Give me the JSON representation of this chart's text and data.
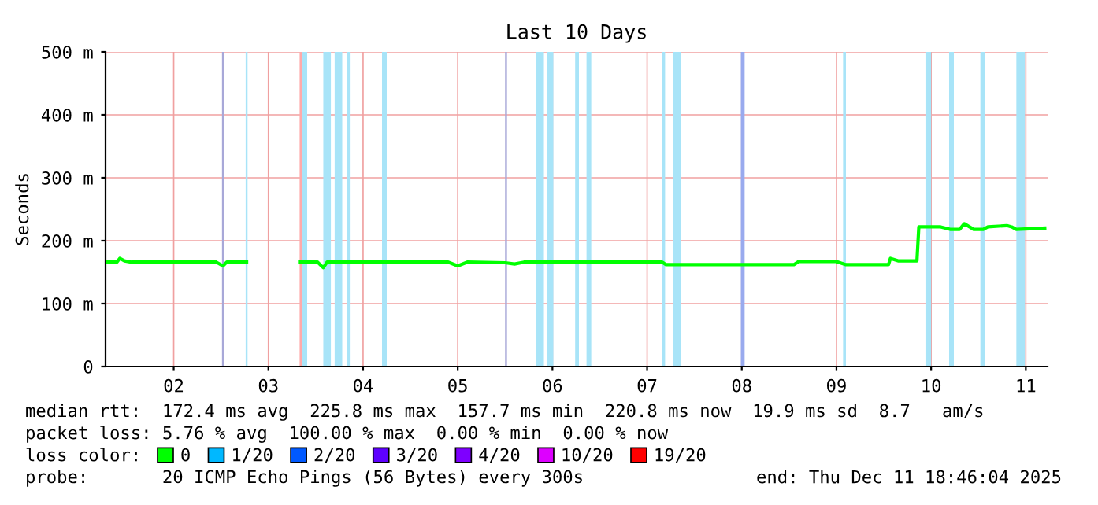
{
  "chart_data": {
    "type": "line",
    "title": "Last 10 Days",
    "ylabel": "Seconds",
    "legend_title": "loss color:",
    "xlim": [
      1.28,
      11.23
    ],
    "xticks": [
      {
        "value": 2,
        "label": "02"
      },
      {
        "value": 3,
        "label": "03"
      },
      {
        "value": 4,
        "label": "04"
      },
      {
        "value": 5,
        "label": "05"
      },
      {
        "value": 6,
        "label": "06"
      },
      {
        "value": 7,
        "label": "07"
      },
      {
        "value": 8,
        "label": "08"
      },
      {
        "value": 9,
        "label": "09"
      },
      {
        "value": 10,
        "label": "10"
      },
      {
        "value": 11,
        "label": "11"
      }
    ],
    "ylim": [
      0,
      500
    ],
    "yticks": [
      0,
      {
        "value": 100,
        "label": "100 m"
      },
      {
        "value": 200,
        "label": "200 m"
      },
      {
        "value": 300,
        "label": "300 m"
      },
      {
        "value": 400,
        "label": "400 m"
      },
      {
        "value": 500,
        "label": "500 m"
      }
    ],
    "grid": true,
    "legend": "bottom",
    "marker": "none",
    "line_style": "solid",
    "series": [
      {
        "name": "0",
        "color": "#00ff00",
        "x": [
          1.28,
          1.4,
          1.43,
          1.48,
          1.55,
          2.45,
          2.52,
          2.56,
          2.77,
          3.0,
          3.33,
          3.52,
          3.58,
          3.62,
          4.9,
          5.0,
          5.1,
          5.5,
          5.6,
          5.7,
          7.16,
          7.2,
          8.55,
          8.6,
          9.0,
          9.1,
          9.55,
          9.57,
          9.65,
          9.85,
          9.87,
          10.1,
          10.2,
          10.3,
          10.35,
          10.45,
          10.55,
          10.6,
          10.8,
          10.85,
          10.9,
          11.2
        ],
        "values": [
          166,
          166,
          172,
          168,
          166,
          166,
          160,
          166,
          166,
          null,
          166,
          166,
          157,
          166,
          166,
          160,
          166,
          165,
          163,
          166,
          166,
          162,
          162,
          167,
          167,
          162,
          162,
          172,
          168,
          168,
          222,
          222,
          218,
          218,
          227,
          218,
          218,
          222,
          224,
          222,
          218,
          220
        ]
      },
      {
        "name": "1/20",
        "color": "#00b8ff"
      },
      {
        "name": "2/20",
        "color": "#0059ff"
      },
      {
        "name": "3/20",
        "color": "#5e00ff"
      },
      {
        "name": "4/20",
        "color": "#7e00ff"
      },
      {
        "name": "10/20",
        "color": "#dd00ff"
      },
      {
        "name": "19/20",
        "color": "#ff0000"
      }
    ],
    "bands": [
      {
        "axis": "x",
        "from": 2.51,
        "to": 2.53,
        "color": "#a8a8d8"
      },
      {
        "axis": "x",
        "from": 2.76,
        "to": 2.78,
        "color": "#a8e4f8"
      },
      {
        "axis": "x",
        "from": 3.33,
        "to": 3.36,
        "color": "#ffaaaa"
      },
      {
        "axis": "x",
        "from": 3.36,
        "to": 3.41,
        "color": "#a8e4f8"
      },
      {
        "axis": "x",
        "from": 3.58,
        "to": 3.66,
        "color": "#a8e4f8"
      },
      {
        "axis": "x",
        "from": 3.7,
        "to": 3.78,
        "color": "#a8e4f8"
      },
      {
        "axis": "x",
        "from": 3.83,
        "to": 3.86,
        "color": "#a8e4f8"
      },
      {
        "axis": "x",
        "from": 4.2,
        "to": 4.25,
        "color": "#a8e4f8"
      },
      {
        "axis": "x",
        "from": 5.5,
        "to": 5.52,
        "color": "#a8a8d8"
      },
      {
        "axis": "x",
        "from": 5.83,
        "to": 5.91,
        "color": "#a8e4f8"
      },
      {
        "axis": "x",
        "from": 5.94,
        "to": 6.01,
        "color": "#a8e4f8"
      },
      {
        "axis": "x",
        "from": 6.24,
        "to": 6.28,
        "color": "#a8e4f8"
      },
      {
        "axis": "x",
        "from": 6.36,
        "to": 6.41,
        "color": "#a8e4f8"
      },
      {
        "axis": "x",
        "from": 7.16,
        "to": 7.19,
        "color": "#a8e4f8"
      },
      {
        "axis": "x",
        "from": 7.27,
        "to": 7.36,
        "color": "#a8e4f8"
      },
      {
        "axis": "x",
        "from": 7.99,
        "to": 8.03,
        "color": "#99aaee"
      },
      {
        "axis": "x",
        "from": 9.07,
        "to": 9.1,
        "color": "#a8e4f8"
      },
      {
        "axis": "x",
        "from": 9.94,
        "to": 10.0,
        "color": "#a8e4f8"
      },
      {
        "axis": "x",
        "from": 10.19,
        "to": 10.24,
        "color": "#a8e4f8"
      },
      {
        "axis": "x",
        "from": 10.52,
        "to": 10.57,
        "color": "#a8e4f8"
      },
      {
        "axis": "x",
        "from": 10.9,
        "to": 10.99,
        "color": "#a8e4f8"
      }
    ],
    "annotations": [
      "median rtt:  172.4 ms avg  225.8 ms max  157.7 ms min  220.8 ms now  19.9 ms sd  8.7   am/s",
      "packet loss: 5.76 % avg  100.00 % max  0.00 % min  0.00 % now",
      "probe:       20 ICMP Echo Pings (56 Bytes) every 300s",
      "end: Thu Dec 11 18:46:04 2025"
    ]
  }
}
